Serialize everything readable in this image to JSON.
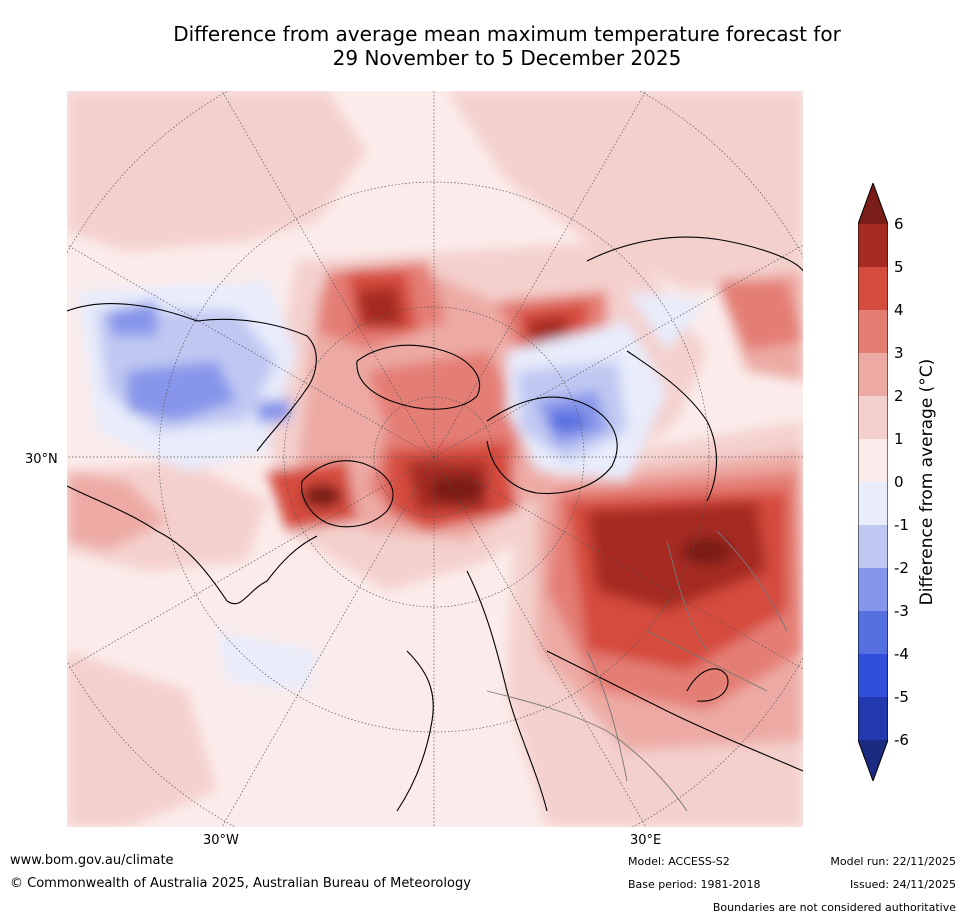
{
  "title": {
    "line1": "Difference from average mean maximum temperature forecast for",
    "line2": "29 November to 5 December 2025"
  },
  "map": {
    "projection": "north polar stereographic",
    "labels": {
      "lat_30n": "30°N",
      "lon_30w": "30°W",
      "lon_30e": "30°E"
    }
  },
  "colorbar": {
    "label": "Difference from average (°C)",
    "ticks": [
      "6",
      "5",
      "4",
      "3",
      "2",
      "1",
      "0",
      "-1",
      "-2",
      "-3",
      "-4",
      "-5",
      "-6"
    ],
    "colors": {
      "above_6": "#7a1c17",
      "5_to_6": "#a62b22",
      "4_to_5": "#d54c3e",
      "3_to_4": "#e47e74",
      "2_to_3": "#edaaa4",
      "1_to_2": "#f4d0cd",
      "0_to_1": "#fbeceb",
      "m1_to_0": "#e8ecfb",
      "m2_to_m1": "#c0c8f2",
      "m3_to_m2": "#8796ea",
      "m4_to_m3": "#5670e0",
      "m5_to_m4": "#3050dc",
      "m6_to_m5": "#2339b0",
      "below_m6": "#1c2a80"
    }
  },
  "footer": {
    "url": "www.bom.gov.au/climate",
    "copyright": "© Commonwealth of Australia 2025, Australian Bureau of Meteorology",
    "model": "Model: ACCESS-S2",
    "base_period": "Base period: 1981-2018",
    "model_run": "Model run: 22/11/2025",
    "issued": "Issued: 24/11/2025",
    "disclaimer": "Boundaries are not considered authoritative"
  }
}
